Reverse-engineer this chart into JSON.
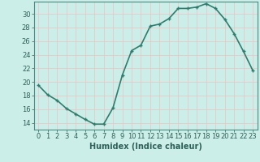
{
  "xlabel": "Humidex (Indice chaleur)",
  "x": [
    0,
    1,
    2,
    3,
    4,
    5,
    6,
    7,
    8,
    9,
    10,
    11,
    12,
    13,
    14,
    15,
    16,
    17,
    18,
    19,
    20,
    21,
    22,
    23
  ],
  "y": [
    19.5,
    18.1,
    17.3,
    16.1,
    15.3,
    14.5,
    13.8,
    13.8,
    16.2,
    21.0,
    24.6,
    25.4,
    28.2,
    28.5,
    29.3,
    30.8,
    30.8,
    31.0,
    31.5,
    30.8,
    29.2,
    27.1,
    24.5,
    21.7
  ],
  "line_color": "#2e7d6e",
  "marker": "+",
  "marker_size": 4,
  "bg_color": "#cceee8",
  "grid_color_major": "#e8c8c8",
  "grid_color_minor": "#e8c8c8",
  "tick_color": "#2e5f58",
  "ylim": [
    13,
    31.8
  ],
  "yticks": [
    14,
    16,
    18,
    20,
    22,
    24,
    26,
    28,
    30
  ],
  "xlim": [
    -0.5,
    23.5
  ],
  "xticks": [
    0,
    1,
    2,
    3,
    4,
    5,
    6,
    7,
    8,
    9,
    10,
    11,
    12,
    13,
    14,
    15,
    16,
    17,
    18,
    19,
    20,
    21,
    22,
    23
  ],
  "xlabel_fontsize": 7,
  "tick_fontsize": 6,
  "linewidth": 1.2,
  "marker_size_pt": 3.5
}
